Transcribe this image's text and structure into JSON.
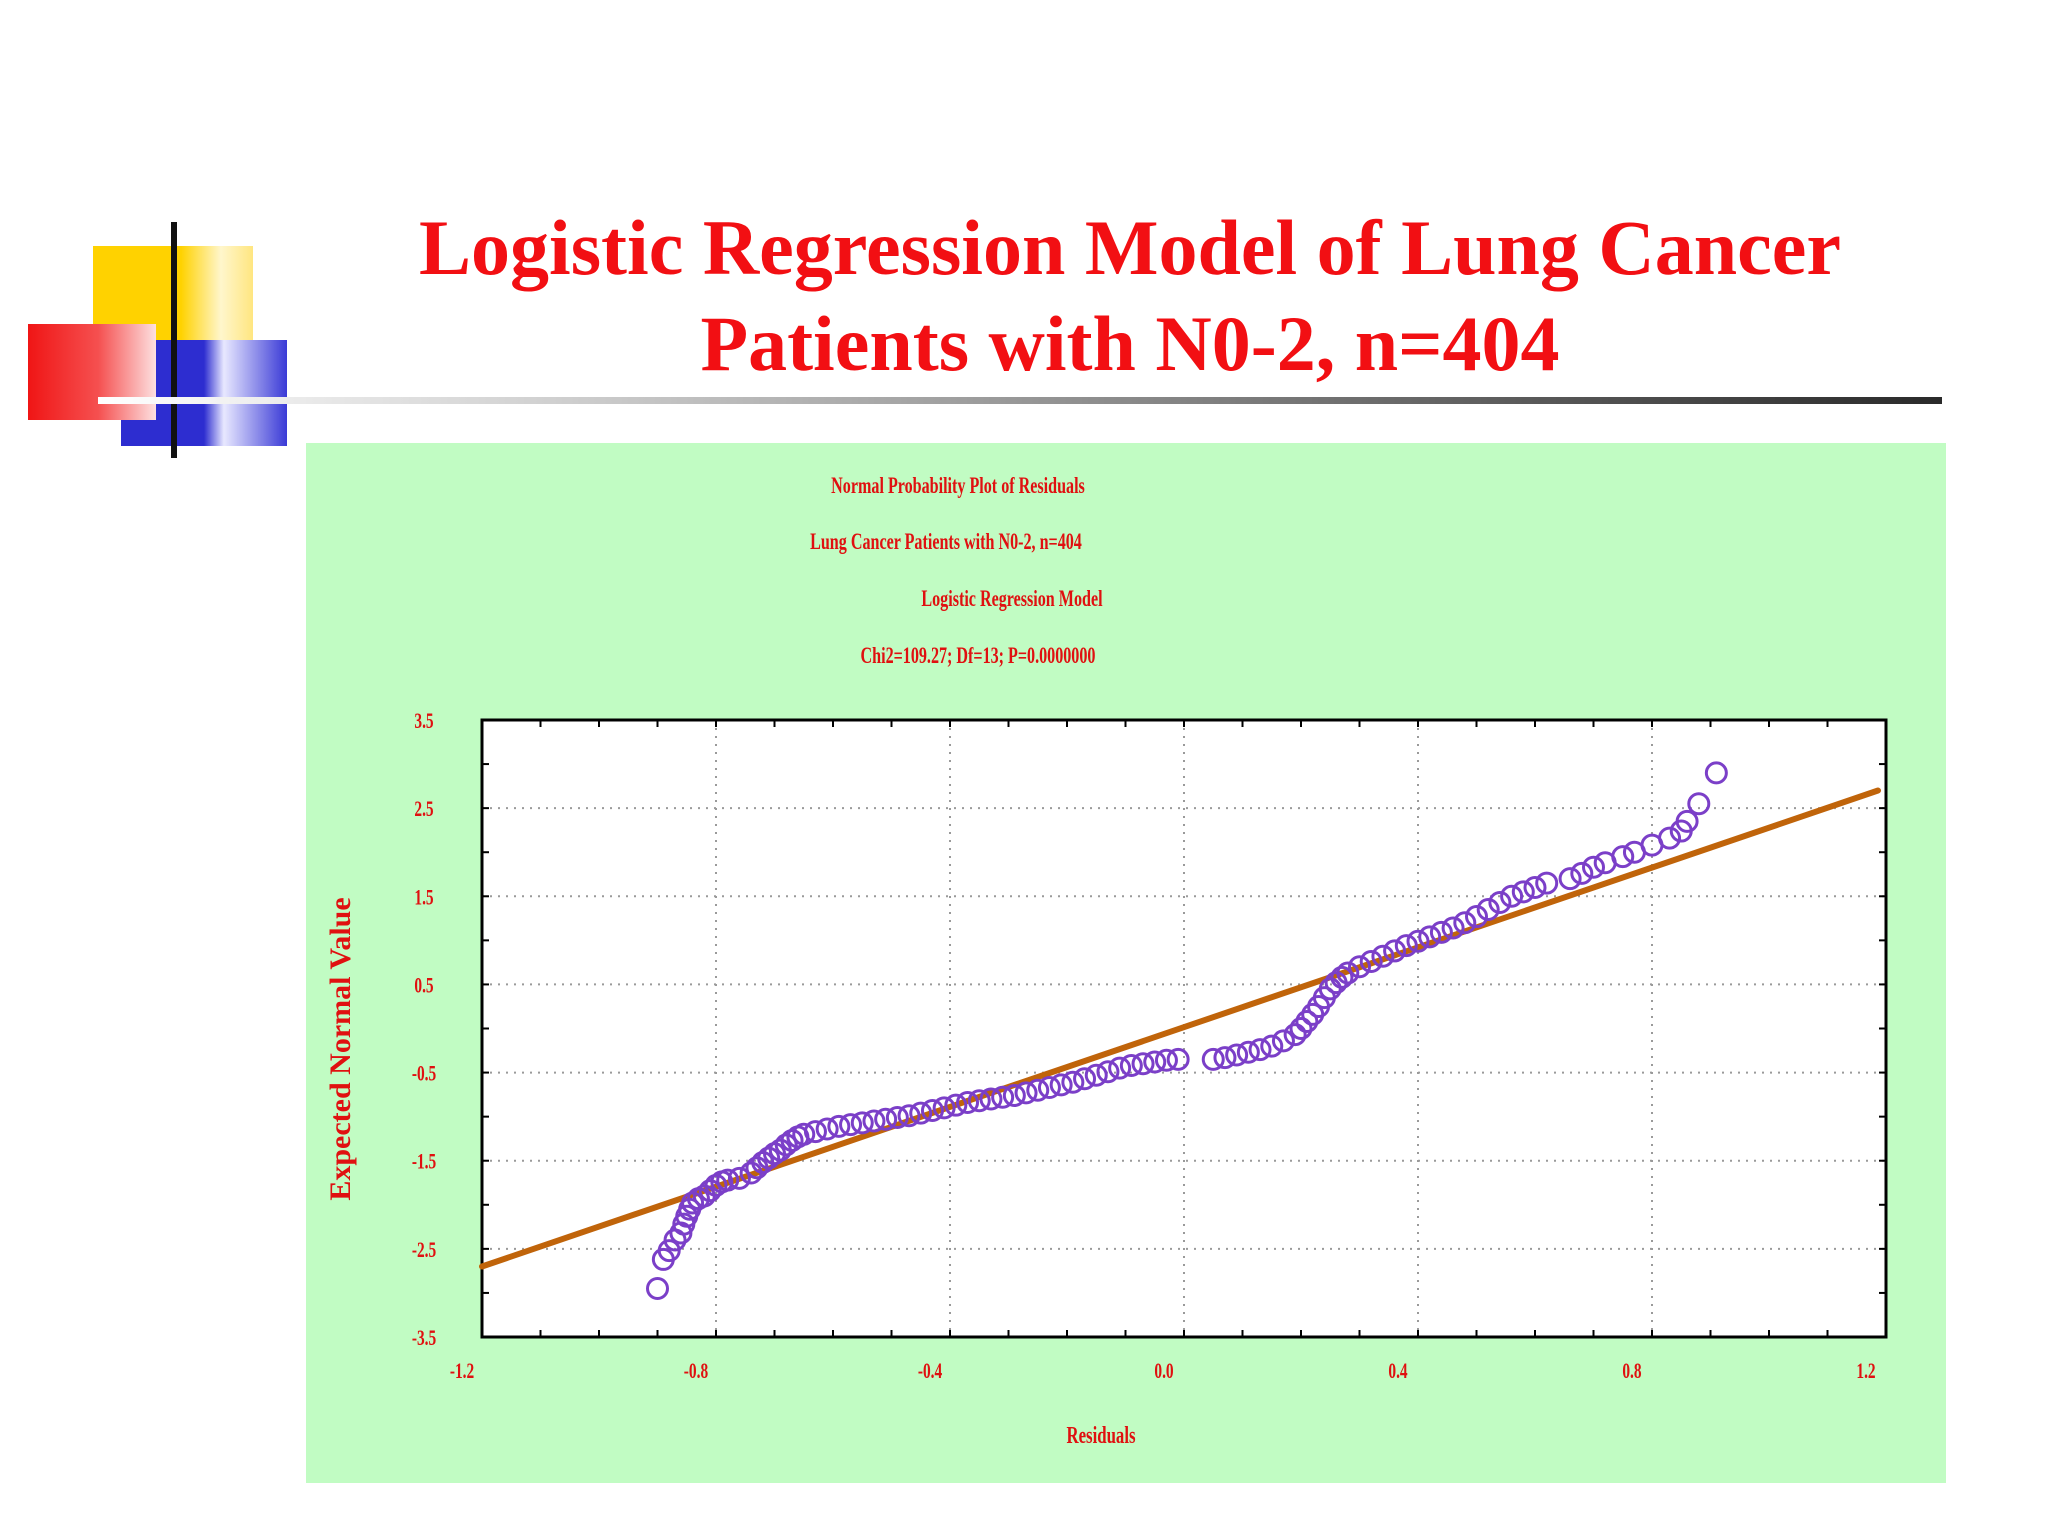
{
  "slide": {
    "title_line1": "Logistic Regression Model of Lung Cancer",
    "title_line2": "Patients with N0-2, n=404",
    "colors": {
      "title": "#f20f13",
      "panel_bg": "#c1fcc3",
      "deco_yellow": "#ffd200",
      "deco_red": "#f01515",
      "deco_blue": "#2d2dd0",
      "rule": "#333333"
    }
  },
  "chart_data": {
    "type": "scatter",
    "title_lines": [
      "Normal Probability Plot of Residuals",
      "Lung Cancer Patients with N0-2, n=404",
      "Logistic Regression Model",
      "Chi2=109.27; Df=13; P=0.0000000"
    ],
    "xlabel": "Residuals",
    "ylabel": "Expected Normal Value",
    "xlim": [
      -1.2,
      1.2
    ],
    "ylim": [
      -3.5,
      3.5
    ],
    "xticks": [
      -1.2,
      -0.8,
      -0.4,
      0.0,
      0.4,
      0.8,
      1.2
    ],
    "xtick_labels": [
      "-1.2",
      "-0.8",
      "-0.4",
      "0.0",
      "0.4",
      "0.8",
      "1.2"
    ],
    "yticks": [
      3.5,
      2.5,
      1.5,
      0.5,
      -0.5,
      -1.5,
      -2.5,
      -3.5
    ],
    "ytick_labels": [
      "3.5",
      "2.5",
      "1.5",
      "0.5",
      "-0.5",
      "-1.5",
      "-2.5",
      "-3.5"
    ],
    "grid": true,
    "reference_line": {
      "x": [
        -1.2,
        1.2
      ],
      "y": [
        -2.7,
        2.7
      ],
      "color": "#c0640a"
    },
    "marker_color": "#7b3fc8",
    "series": [
      {
        "points": [
          [
            -0.9,
            -2.95
          ],
          [
            -0.89,
            -2.62
          ],
          [
            -0.88,
            -2.52
          ],
          [
            -0.87,
            -2.4
          ],
          [
            -0.86,
            -2.32
          ],
          [
            -0.855,
            -2.22
          ],
          [
            -0.85,
            -2.13
          ],
          [
            -0.845,
            -2.05
          ],
          [
            -0.84,
            -1.98
          ],
          [
            -0.83,
            -1.93
          ],
          [
            -0.82,
            -1.9
          ],
          [
            -0.81,
            -1.84
          ],
          [
            -0.8,
            -1.78
          ],
          [
            -0.79,
            -1.74
          ],
          [
            -0.78,
            -1.72
          ],
          [
            -0.76,
            -1.7
          ],
          [
            -0.74,
            -1.64
          ],
          [
            -0.73,
            -1.58
          ],
          [
            -0.72,
            -1.52
          ],
          [
            -0.71,
            -1.47
          ],
          [
            -0.7,
            -1.42
          ],
          [
            -0.69,
            -1.38
          ],
          [
            -0.68,
            -1.32
          ],
          [
            -0.67,
            -1.27
          ],
          [
            -0.66,
            -1.23
          ],
          [
            -0.65,
            -1.2
          ],
          [
            -0.63,
            -1.17
          ],
          [
            -0.61,
            -1.14
          ],
          [
            -0.59,
            -1.11
          ],
          [
            -0.57,
            -1.09
          ],
          [
            -0.55,
            -1.07
          ],
          [
            -0.53,
            -1.05
          ],
          [
            -0.51,
            -1.03
          ],
          [
            -0.49,
            -1.01
          ],
          [
            -0.47,
            -0.99
          ],
          [
            -0.45,
            -0.96
          ],
          [
            -0.43,
            -0.93
          ],
          [
            -0.41,
            -0.9
          ],
          [
            -0.39,
            -0.87
          ],
          [
            -0.37,
            -0.84
          ],
          [
            -0.35,
            -0.82
          ],
          [
            -0.33,
            -0.8
          ],
          [
            -0.31,
            -0.78
          ],
          [
            -0.29,
            -0.76
          ],
          [
            -0.27,
            -0.73
          ],
          [
            -0.25,
            -0.7
          ],
          [
            -0.23,
            -0.67
          ],
          [
            -0.21,
            -0.64
          ],
          [
            -0.19,
            -0.61
          ],
          [
            -0.17,
            -0.57
          ],
          [
            -0.15,
            -0.53
          ],
          [
            -0.13,
            -0.49
          ],
          [
            -0.11,
            -0.45
          ],
          [
            -0.09,
            -0.42
          ],
          [
            -0.07,
            -0.4
          ],
          [
            -0.05,
            -0.38
          ],
          [
            -0.03,
            -0.36
          ],
          [
            -0.01,
            -0.35
          ],
          [
            0.05,
            -0.35
          ],
          [
            0.07,
            -0.33
          ],
          [
            0.09,
            -0.3
          ],
          [
            0.11,
            -0.27
          ],
          [
            0.13,
            -0.24
          ],
          [
            0.15,
            -0.2
          ],
          [
            0.17,
            -0.14
          ],
          [
            0.19,
            -0.07
          ],
          [
            0.2,
            0.0
          ],
          [
            0.21,
            0.08
          ],
          [
            0.22,
            0.16
          ],
          [
            0.23,
            0.25
          ],
          [
            0.24,
            0.35
          ],
          [
            0.25,
            0.45
          ],
          [
            0.26,
            0.52
          ],
          [
            0.27,
            0.58
          ],
          [
            0.28,
            0.63
          ],
          [
            0.3,
            0.7
          ],
          [
            0.32,
            0.76
          ],
          [
            0.34,
            0.82
          ],
          [
            0.36,
            0.88
          ],
          [
            0.38,
            0.94
          ],
          [
            0.4,
            0.99
          ],
          [
            0.42,
            1.04
          ],
          [
            0.44,
            1.09
          ],
          [
            0.46,
            1.14
          ],
          [
            0.48,
            1.2
          ],
          [
            0.5,
            1.27
          ],
          [
            0.52,
            1.35
          ],
          [
            0.54,
            1.43
          ],
          [
            0.56,
            1.5
          ],
          [
            0.58,
            1.55
          ],
          [
            0.6,
            1.6
          ],
          [
            0.62,
            1.65
          ],
          [
            0.66,
            1.7
          ],
          [
            0.68,
            1.76
          ],
          [
            0.7,
            1.83
          ],
          [
            0.72,
            1.88
          ],
          [
            0.75,
            1.95
          ],
          [
            0.77,
            2.0
          ],
          [
            0.8,
            2.08
          ],
          [
            0.83,
            2.16
          ],
          [
            0.85,
            2.24
          ],
          [
            0.86,
            2.35
          ],
          [
            0.88,
            2.55
          ],
          [
            0.91,
            2.9
          ]
        ]
      }
    ]
  }
}
